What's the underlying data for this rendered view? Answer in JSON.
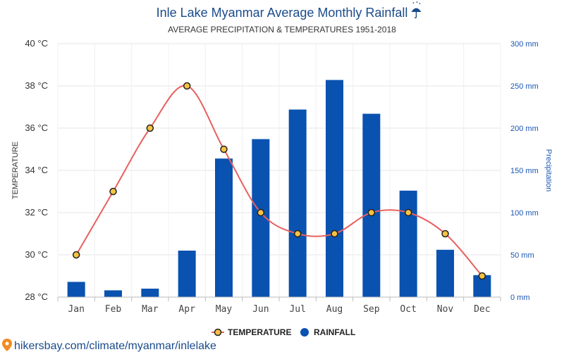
{
  "chart_data": {
    "type": "bar",
    "title": "Inle Lake Myanmar Average Monthly Rainfall",
    "title_icon": "umbrella-icon",
    "subtitle": "AVERAGE PRECIPITATION & TEMPERATURES 1951-2018",
    "categories": [
      "Jan",
      "Feb",
      "Mar",
      "Apr",
      "May",
      "Jun",
      "Jul",
      "Aug",
      "Sep",
      "Oct",
      "Nov",
      "Dec"
    ],
    "series": [
      {
        "name": "TEMPERATURE",
        "type": "line",
        "axis": "left",
        "values": [
          30,
          33,
          36,
          38,
          35,
          32,
          31,
          31,
          32,
          32,
          31,
          29
        ],
        "color": "#e8605f",
        "marker_fill": "#f5c242",
        "marker_stroke": "#222222"
      },
      {
        "name": "RAINFALL",
        "type": "bar",
        "axis": "right",
        "values": [
          18,
          8,
          10,
          55,
          164,
          187,
          222,
          257,
          217,
          126,
          56,
          26
        ],
        "color": "#0a52b0"
      }
    ],
    "y_left": {
      "label": "TEMPERATURE",
      "min": 28,
      "max": 40,
      "ticks": [
        28,
        30,
        32,
        34,
        36,
        38,
        40
      ],
      "unit": "°C"
    },
    "y_right": {
      "label": "Precipitation",
      "min": 0,
      "max": 300,
      "ticks": [
        0,
        50,
        100,
        150,
        200,
        250,
        300
      ],
      "unit": "mm"
    },
    "grid": true,
    "legend_position": "bottom"
  },
  "footer": {
    "icon": "map-pin-icon",
    "text": "hikersbay.com/climate/myanmar/inlelake",
    "color": "#1a4b8c"
  }
}
